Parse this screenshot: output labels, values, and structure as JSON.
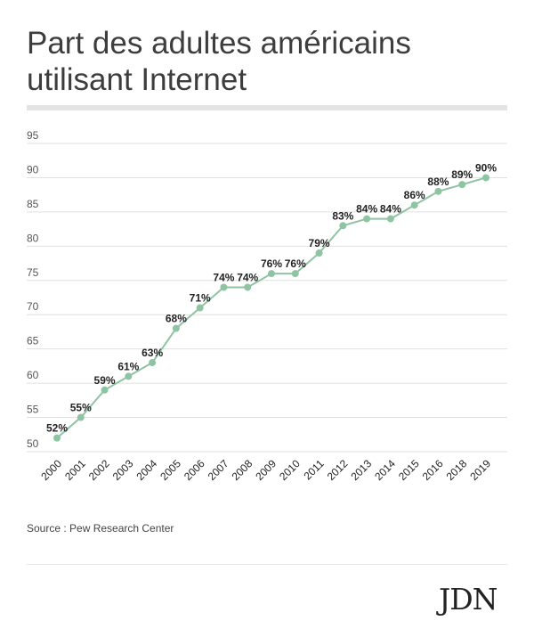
{
  "header": {
    "title_line1": "Part des adultes américains",
    "title_line2": "utilisant Internet"
  },
  "footer": {
    "source": "Source : Pew Research Center",
    "logo": "JDN"
  },
  "colors": {
    "line": "#8fc4a3",
    "grid": "#e0e0e0",
    "label": "#222222",
    "tick": "#555555"
  },
  "chart_data": {
    "type": "line",
    "title": "Part des adultes américains utilisant Internet",
    "xlabel": "",
    "ylabel": "",
    "ylim": [
      50,
      95
    ],
    "yticks": [
      50,
      55,
      60,
      65,
      70,
      75,
      80,
      85,
      90,
      95
    ],
    "grid": true,
    "categories": [
      "2000",
      "2001",
      "2002",
      "2003",
      "2004",
      "2005",
      "2006",
      "2007",
      "2008",
      "2009",
      "2010",
      "2011",
      "2012",
      "2013",
      "2014",
      "2015",
      "2016",
      "2018",
      "2019"
    ],
    "series": [
      {
        "values": [
          52,
          55,
          59,
          61,
          63,
          68,
          71,
          74,
          74,
          76,
          76,
          79,
          83,
          84,
          84,
          86,
          88,
          89,
          90
        ],
        "labels": [
          "52%",
          "55%",
          "59%",
          "61%",
          "63%",
          "68%",
          "71%",
          "74%",
          "74%",
          "76%",
          "76%",
          "79%",
          "83%",
          "84%",
          "84%",
          "86%",
          "88%",
          "89%",
          "90%"
        ]
      }
    ]
  }
}
